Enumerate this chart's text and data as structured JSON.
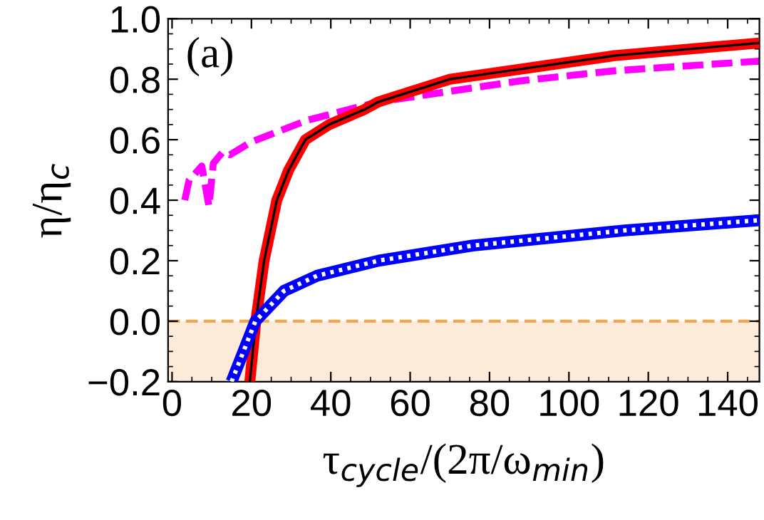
{
  "chart_data": {
    "type": "line",
    "xlabel": "τ$_{cycle}$/(2π/ω$_{min}$)",
    "ylabel": "η/η$_{c}$",
    "annotations": [
      "(a)"
    ],
    "series": [
      {
        "color": "#ff00ff",
        "line_style": "dashed",
        "x": [
          3.2,
          4.3,
          7.5,
          9.3,
          10.4,
          12.8,
          14.6,
          20,
          34,
          52,
          88,
          111.5,
          148
        ],
        "values": [
          0.4,
          0.466,
          0.513,
          0.38,
          0.522,
          0.56,
          0.55,
          0.593,
          0.664,
          0.725,
          0.795,
          0.828,
          0.86
        ]
      },
      {
        "color": "#ff0000",
        "line_style": "solid",
        "x": [
          19.6,
          21.1,
          23.2,
          26.4,
          29.4,
          33.6,
          39.6,
          48.5,
          52,
          70,
          111.5,
          148
        ],
        "values": [
          -0.2,
          0,
          0.2,
          0.4,
          0.5,
          0.6,
          0.65,
          0.7,
          0.725,
          0.8,
          0.878,
          0.92
        ]
      },
      {
        "color": "#000000",
        "line_style": "solid",
        "x": [
          19.6,
          21.1,
          23.2,
          26.4,
          29.4,
          33.6,
          39.6,
          48.5,
          52,
          70,
          111.5,
          148
        ],
        "values": [
          -0.2,
          0,
          0.2,
          0.4,
          0.5,
          0.6,
          0.65,
          0.7,
          0.725,
          0.8,
          0.878,
          0.92
        ]
      },
      {
        "color": "#0000ff",
        "line_style": "solid",
        "x": [
          15.0,
          21,
          28.2,
          36.5,
          52,
          75.7,
          114,
          148
        ],
        "values": [
          -0.2,
          0,
          0.1,
          0.15,
          0.2,
          0.25,
          0.3,
          0.334
        ]
      },
      {
        "color": "#ffffff",
        "line_style": "dotted",
        "x": [
          15.0,
          21,
          28.2,
          36.5,
          52,
          75.7,
          114,
          148
        ],
        "values": [
          -0.2,
          0,
          0.1,
          0.15,
          0.2,
          0.25,
          0.3,
          0.334
        ]
      }
    ],
    "ref_lines": [
      {
        "axis": "y",
        "value": 0,
        "color": "#f5a54a",
        "line_style": "dashed"
      }
    ],
    "bands": [
      {
        "axis": "y",
        "from": -0.2,
        "to": 0,
        "color": "#fdebd9"
      }
    ],
    "xlim": [
      -1,
      148
    ],
    "xticks": [
      0,
      20,
      40,
      60,
      80,
      100,
      120,
      140
    ],
    "ylim": [
      -0.2,
      1.0
    ],
    "yticks": [
      {
        "value": -0.2,
        "label": "−0.2"
      },
      {
        "value": 0,
        "label": "0.0"
      },
      0.2,
      0.4,
      0.6,
      0.8,
      {
        "value": 1.0,
        "label": "1.0"
      }
    ],
    "grid": false,
    "legend": false
  }
}
